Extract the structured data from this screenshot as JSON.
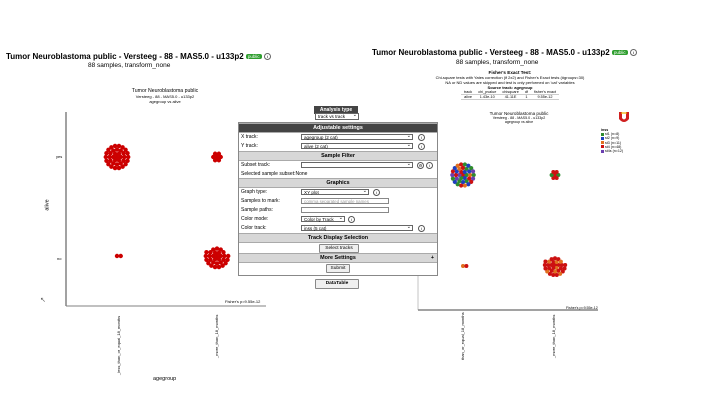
{
  "left": {
    "title": "Tumor Neuroblastoma public - Versteeg - 88 - MAS5.0 - u133p2",
    "badge": "public",
    "subtitle": "88 samples, transform_none",
    "plot_title": "Tumor Neuroblastoma public",
    "plot_sub1": "Versteeg - 88 - MAS5.0 - u133p2",
    "plot_sub2": "agegroup vs alive",
    "ylabel": "alive",
    "xlabel": "agegroup",
    "ytick_yes": "yes",
    "ytick_no": "no",
    "xtick1": "_less_than_or_equal_18_months",
    "xtick2": "_more_than_18_months",
    "pvalue": "Fisher's p=9.55e-12"
  },
  "right": {
    "title": "Tumor Neuroblastoma public - Versteeg - 88 - MAS5.0 - u133p2",
    "badge": "public",
    "subtitle": "88 samples, transform_none",
    "fisher_title": "Fisher's Exact Test:",
    "fisher_line1": "Chi-square tests with Yates correction (if 2x2) and Fisher's Exact tests (#groups<30)",
    "fisher_line2": "NA or ND values are skipped and test is only performed on 'cat' variables",
    "source_track": "Source track: agegroup",
    "table_headers": [
      "track",
      "chi_pvalue",
      "chisquare",
      "df",
      "fisher's exact"
    ],
    "table_row": [
      "alive",
      "1.43e-10",
      "41.11E",
      "1",
      "9.55e-12"
    ],
    "plot_title": "Tumor Neuroblastoma public",
    "plot_sub1": "Versteeg - 88 - MAS5.0 - u133p2",
    "plot_sub2": "agegroup vs alive",
    "legend_title": "inss",
    "legend": [
      {
        "label": "st1 (n=8)",
        "color": "#2e8b2e"
      },
      {
        "label": "st2 (n=9)",
        "color": "#1f3fbf"
      },
      {
        "label": "st3 (n=11)",
        "color": "#e07020"
      },
      {
        "label": "st4 (n=48)",
        "color": "#cc1111"
      },
      {
        "label": "st4s (n=12)",
        "color": "#6a3fb0"
      }
    ],
    "xtick1": "than_or_equal_18_months",
    "xtick2": "_more_than_18_months",
    "pvalue": "Fisher's p=9.55e-12"
  },
  "panel": {
    "analysis_type_label": "Analysis type",
    "analysis_type_value": "track vs track",
    "adjustable_settings": "Adjustable settings",
    "x_track_label": "X track:",
    "x_track_value": "agegroup (2 cat)",
    "y_track_label": "Y track:",
    "y_track_value": "alive (2 cat)",
    "sample_filter": "Sample Filter",
    "subset_track_label": "Subset track:",
    "subset_track_value": "",
    "selected_subset_label": "Selected sample subset:",
    "selected_subset_value": "None",
    "graphics": "Graphics",
    "graph_type_label": "Graph type:",
    "graph_type_value": "XY plot",
    "samples_to_mark_label": "Samples to mark:",
    "samples_to_mark_placeholder": "comma separated sample names",
    "sample_paths_label": "Sample paths:",
    "color_mode_label": "Color mode:",
    "color_mode_value": "Color by Track",
    "color_track_label": "Color track:",
    "color_track_value": "inss (5 cat)",
    "track_display_selection": "Track Display Selection",
    "select_tracks": "Select tracks",
    "more_settings": "More Settings",
    "more_plus": "+",
    "submit": "Submit",
    "datatable": "DataTable"
  },
  "colors": {
    "red_dot": "#cc0000",
    "public_badge": "#2e9e2e",
    "header_gray": "#d7d7d7",
    "dark_header": "#444444"
  }
}
